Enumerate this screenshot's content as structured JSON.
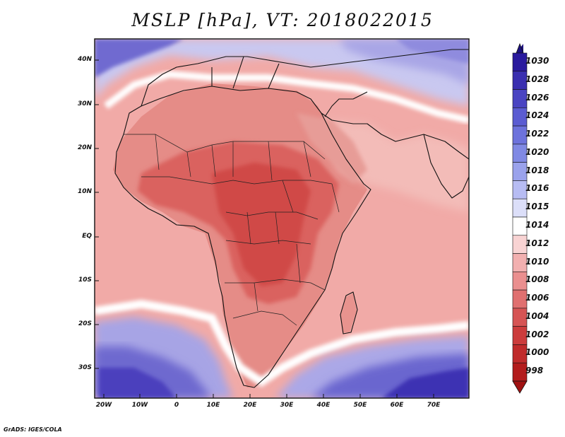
{
  "title": "MSLP [hPa], VT: 2018022015",
  "credit": "GrADS: IGES/COLA",
  "latitude_labels": [
    "40N",
    "30N",
    "20N",
    "10N",
    "EQ",
    "10S",
    "20S",
    "30S"
  ],
  "longitude_labels": [
    "20W",
    "10W",
    "0",
    "10E",
    "20E",
    "30E",
    "40E",
    "50E",
    "60E",
    "70E"
  ],
  "colorbar": {
    "levels": [
      "1030",
      "1028",
      "1026",
      "1024",
      "1022",
      "1020",
      "1018",
      "1016",
      "1015",
      "1014",
      "1012",
      "1010",
      "1008",
      "1006",
      "1004",
      "1002",
      "1000",
      "998"
    ],
    "colors": [
      "#2a1a9e",
      "#3a2fb0",
      "#4a44c2",
      "#5b5cd2",
      "#6d72dc",
      "#8089e4",
      "#9aa2ec",
      "#b7bcf3",
      "#dcdff9",
      "#ffffff",
      "#f8d3d3",
      "#f2b0b0",
      "#ea8f8f",
      "#e07070",
      "#d65454",
      "#cc3c3c",
      "#c02b2b",
      "#b31c1c"
    ]
  },
  "palette": {
    "ocean_warm": "#f1a9a6",
    "land_mid": "#e48a85",
    "land_low": "#d9605c",
    "land_lowest": "#cf4743",
    "high_pressure": "#8a87d8",
    "very_high": "#4b40c0",
    "white_band": "#ffffff",
    "border": "#111111"
  }
}
